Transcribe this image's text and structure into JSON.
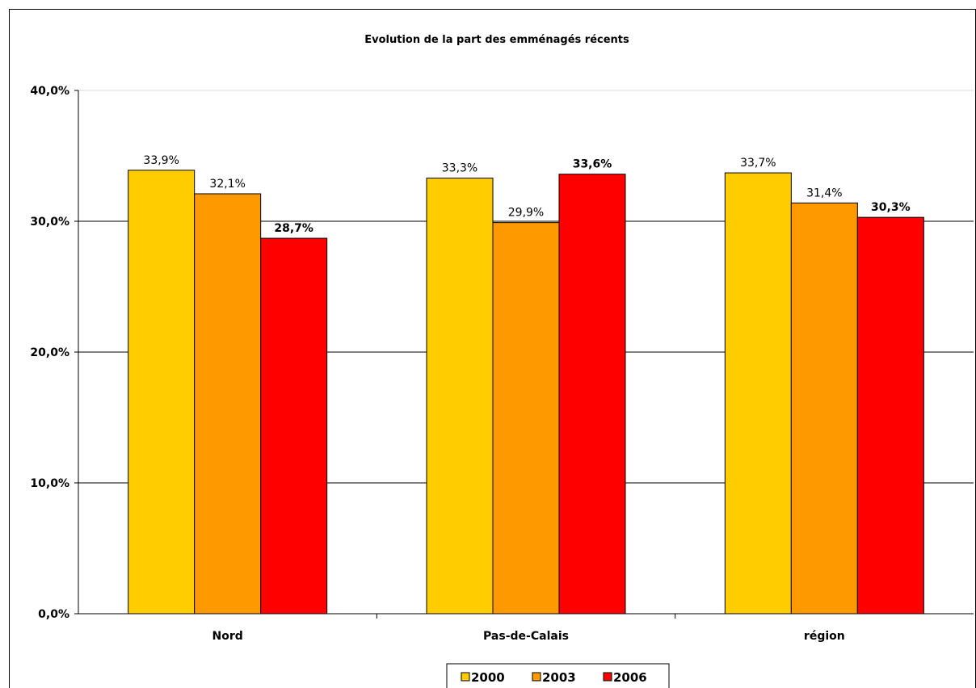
{
  "chart_data": {
    "type": "bar",
    "title": "Evolution de la part des emménagés récents",
    "xlabel": "",
    "ylabel": "",
    "categories": [
      "Nord",
      "Pas-de-Calais",
      "région"
    ],
    "series": [
      {
        "name": "2000",
        "color": "#FFCC00",
        "values": [
          33.9,
          33.3,
          33.7
        ],
        "labels": [
          "33,9%",
          "33,3%",
          "33,7%"
        ],
        "label_bold": false
      },
      {
        "name": "2003",
        "color": "#FF9900",
        "values": [
          32.1,
          29.9,
          31.4
        ],
        "labels": [
          "32,1%",
          "29,9%",
          "31,4%"
        ],
        "label_bold": false
      },
      {
        "name": "2006",
        "color": "#FF0000",
        "values": [
          28.7,
          33.6,
          30.3
        ],
        "labels": [
          "28,7%",
          "33,6%",
          "30,3%"
        ],
        "label_bold": true
      }
    ],
    "ylim": [
      0,
      40
    ],
    "yticks": [
      0,
      10,
      20,
      30,
      40
    ],
    "ytick_labels": [
      "0,0%",
      "10,0%",
      "20,0%",
      "30,0%",
      "40,0%"
    ],
    "grid": true,
    "legend_position": "bottom"
  }
}
